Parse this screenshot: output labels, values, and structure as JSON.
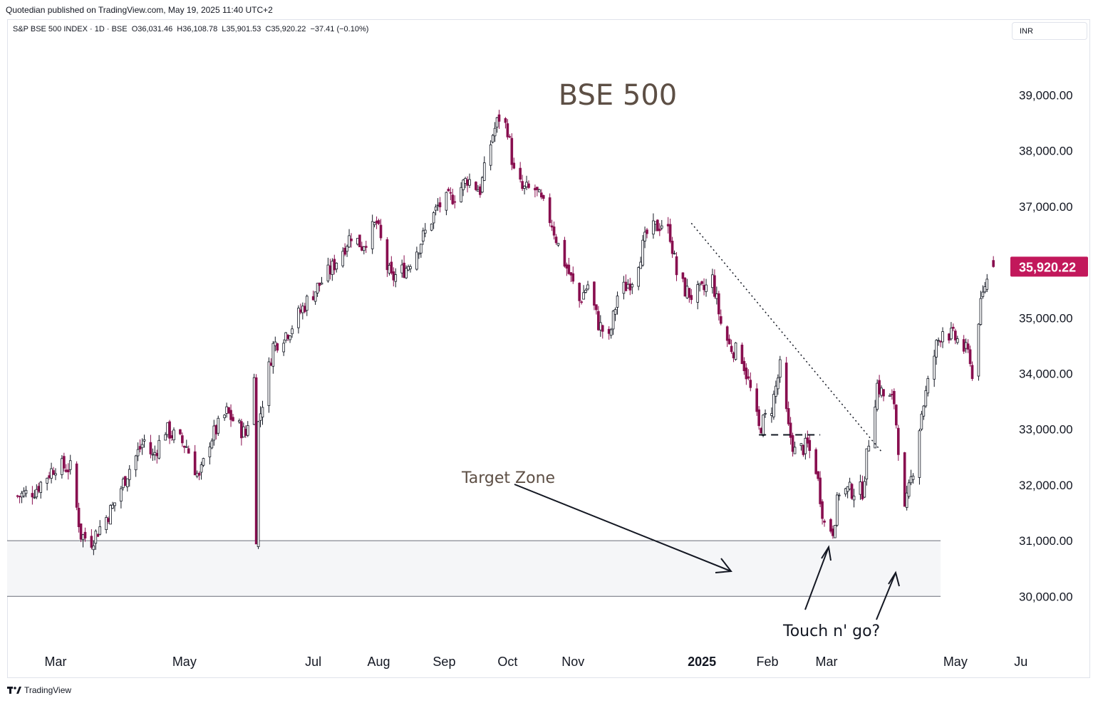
{
  "header": {
    "published_line": "Quotedian published on TradingView.com, May 19, 2025 11:40 UTC+2",
    "legend": "S&P BSE 500 INDEX · 1D · BSE  O36,031.46  H36,108.78  L35,901.53  C35,920.22  −37.41 (−0.10%)",
    "currency": "INR"
  },
  "footer": {
    "brand": "TradingView"
  },
  "colors": {
    "up": "#ffffff",
    "down": "#880e4f",
    "outline": "#131722",
    "last_price_bg": "#c2185b",
    "zone_fill": "#f5f6f8"
  },
  "chart_data": {
    "type": "candlestick",
    "title": "BSE 500",
    "symbol": "S&P BSE 500 INDEX",
    "timeframe": "1D",
    "exchange": "BSE",
    "ohlc_last": {
      "open": 36031.46,
      "high": 36108.78,
      "low": 35901.53,
      "close": 35920.22,
      "change": -37.41,
      "change_pct": -0.1
    },
    "last_price_label": "35,920.22",
    "ylim": [
      29100,
      39900
    ],
    "y_ticks": [
      {
        "value": 39000,
        "label": "39,000.00"
      },
      {
        "value": 38000,
        "label": "38,000.00"
      },
      {
        "value": 37000,
        "label": "37,000.00"
      },
      {
        "value": 35000,
        "label": "35,000.00"
      },
      {
        "value": 34000,
        "label": "34,000.00"
      },
      {
        "value": 33000,
        "label": "33,000.00"
      },
      {
        "value": 32000,
        "label": "32,000.00"
      },
      {
        "value": 31000,
        "label": "31,000.00"
      },
      {
        "value": 30000,
        "label": "30,000.00"
      }
    ],
    "x_ticks": [
      {
        "date": "2024-03-01",
        "label": "Mar",
        "bold": false
      },
      {
        "date": "2024-05-01",
        "label": "May",
        "bold": false
      },
      {
        "date": "2024-07-01",
        "label": "Jul",
        "bold": false
      },
      {
        "date": "2024-08-01",
        "label": "Aug",
        "bold": false
      },
      {
        "date": "2024-09-01",
        "label": "Sep",
        "bold": false
      },
      {
        "date": "2024-10-01",
        "label": "Oct",
        "bold": false
      },
      {
        "date": "2024-11-01",
        "label": "Nov",
        "bold": false
      },
      {
        "date": "2025-01-01",
        "label": "2025",
        "bold": true
      },
      {
        "date": "2025-02-01",
        "label": "Feb",
        "bold": false
      },
      {
        "date": "2025-03-01",
        "label": "Mar",
        "bold": false
      },
      {
        "date": "2025-05-01",
        "label": "May",
        "bold": false
      },
      {
        "date": "2025-06-01",
        "label": "Ju",
        "bold": false
      }
    ],
    "target_zone": {
      "low": 30000,
      "high": 31000,
      "label": "Target Zone"
    },
    "annotations": [
      {
        "text": "Touch n' go?"
      }
    ],
    "downtrend_line": {
      "from": {
        "date": "2024-12-27",
        "value": 36700
      },
      "to": {
        "date": "2025-03-27",
        "value": 32600
      }
    },
    "neckline": {
      "from": {
        "date": "2025-01-28",
        "value": 32900
      },
      "to": {
        "date": "2025-02-26",
        "value": 32900
      }
    },
    "path_points": [
      [
        "2024-02-12",
        31800
      ],
      [
        "2024-02-20",
        31900
      ],
      [
        "2024-03-01",
        32350
      ],
      [
        "2024-03-08",
        32300
      ],
      [
        "2024-03-13",
        31100
      ],
      [
        "2024-03-18",
        31000
      ],
      [
        "2024-03-28",
        31600
      ],
      [
        "2024-04-05",
        32300
      ],
      [
        "2024-04-12",
        32800
      ],
      [
        "2024-04-16",
        32500
      ],
      [
        "2024-04-22",
        33000
      ],
      [
        "2024-05-02",
        32700
      ],
      [
        "2024-05-08",
        32100
      ],
      [
        "2024-05-13",
        32800
      ],
      [
        "2024-05-21",
        33300
      ],
      [
        "2024-05-30",
        32900
      ],
      [
        "2024-06-03",
        33900
      ],
      [
        "2024-06-04",
        31100
      ],
      [
        "2024-06-05",
        33100
      ],
      [
        "2024-06-12",
        34500
      ],
      [
        "2024-06-20",
        34800
      ],
      [
        "2024-06-28",
        35300
      ],
      [
        "2024-07-10",
        35900
      ],
      [
        "2024-07-19",
        36500
      ],
      [
        "2024-07-24",
        36300
      ],
      [
        "2024-07-31",
        36700
      ],
      [
        "2024-08-05",
        35900
      ],
      [
        "2024-08-07",
        35700
      ],
      [
        "2024-08-14",
        35900
      ],
      [
        "2024-08-20",
        36300
      ],
      [
        "2024-08-29",
        37000
      ],
      [
        "2024-09-06",
        37200
      ],
      [
        "2024-09-12",
        37500
      ],
      [
        "2024-09-18",
        37300
      ],
      [
        "2024-09-24",
        38300
      ],
      [
        "2024-09-27",
        38600
      ],
      [
        "2024-10-01",
        38400
      ],
      [
        "2024-10-04",
        37600
      ],
      [
        "2024-10-08",
        37300
      ],
      [
        "2024-10-14",
        37300
      ],
      [
        "2024-10-22",
        36700
      ],
      [
        "2024-10-25",
        36300
      ],
      [
        "2024-10-31",
        35700
      ],
      [
        "2024-11-04",
        35300
      ],
      [
        "2024-11-08",
        35600
      ],
      [
        "2024-11-13",
        34900
      ],
      [
        "2024-11-18",
        34600
      ],
      [
        "2024-11-22",
        35400
      ],
      [
        "2024-11-29",
        35700
      ],
      [
        "2024-12-06",
        36500
      ],
      [
        "2024-12-13",
        36700
      ],
      [
        "2024-12-17",
        36500
      ],
      [
        "2024-12-20",
        35800
      ],
      [
        "2024-12-24",
        35500
      ],
      [
        "2024-12-27",
        35400
      ],
      [
        "2025-01-02",
        35500
      ],
      [
        "2025-01-06",
        35700
      ],
      [
        "2025-01-10",
        34900
      ],
      [
        "2025-01-14",
        34500
      ],
      [
        "2025-01-20",
        34300
      ],
      [
        "2025-01-24",
        33700
      ],
      [
        "2025-01-28",
        33000
      ],
      [
        "2025-02-03",
        33400
      ],
      [
        "2025-02-07",
        34100
      ],
      [
        "2025-02-11",
        33000
      ],
      [
        "2025-02-14",
        32600
      ],
      [
        "2025-02-20",
        32700
      ],
      [
        "2025-02-24",
        32300
      ],
      [
        "2025-02-28",
        31300
      ],
      [
        "2025-03-04",
        31200
      ],
      [
        "2025-03-07",
        31900
      ],
      [
        "2025-03-13",
        31900
      ],
      [
        "2025-03-18",
        31900
      ],
      [
        "2025-03-21",
        32800
      ],
      [
        "2025-03-25",
        33800
      ],
      [
        "2025-03-28",
        33600
      ],
      [
        "2025-04-02",
        33500
      ],
      [
        "2025-04-04",
        32700
      ],
      [
        "2025-04-07",
        31500
      ],
      [
        "2025-04-09",
        31900
      ],
      [
        "2025-04-11",
        32300
      ],
      [
        "2025-04-15",
        33300
      ],
      [
        "2025-04-22",
        34500
      ],
      [
        "2025-04-25",
        34800
      ],
      [
        "2025-05-02",
        34600
      ],
      [
        "2025-05-08",
        34300
      ],
      [
        "2025-05-09",
        33900
      ],
      [
        "2025-05-12",
        35000
      ],
      [
        "2025-05-15",
        35600
      ],
      [
        "2025-05-19",
        35920
      ]
    ]
  }
}
